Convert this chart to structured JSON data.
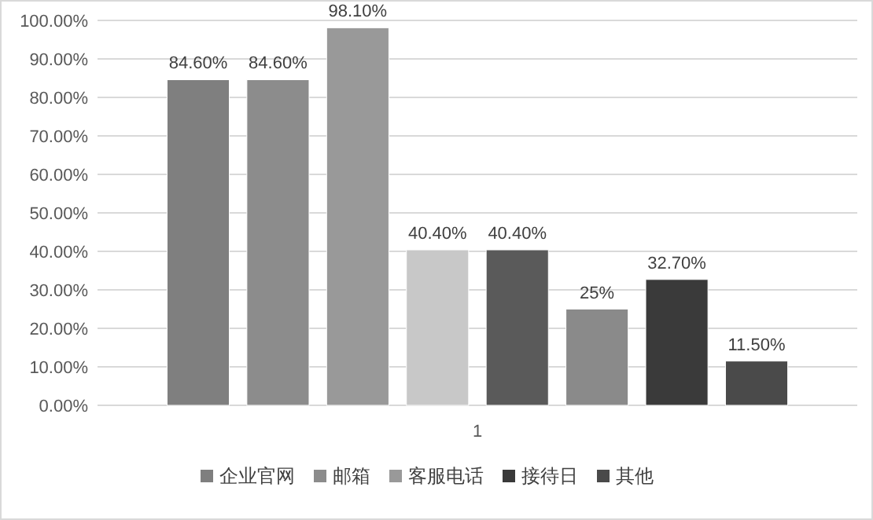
{
  "chart_data": {
    "type": "bar",
    "categories": [
      "1"
    ],
    "series": [
      {
        "name": "企业官网",
        "color": "#7f7f7f",
        "values": [
          84.6
        ],
        "value_labels": [
          "84.60%"
        ]
      },
      {
        "name": "邮箱",
        "color": "#8c8c8c",
        "values": [
          84.6
        ],
        "value_labels": [
          "84.60%"
        ]
      },
      {
        "name": "客服电话",
        "color": "#999999",
        "values": [
          98.1
        ],
        "value_labels": [
          "98.10%"
        ]
      },
      {
        "color": "#c8c8c8",
        "values": [
          40.4
        ],
        "value_labels": [
          "40.40%"
        ]
      },
      {
        "color": "#5a5a5a",
        "values": [
          40.4
        ],
        "value_labels": [
          "40.40%"
        ]
      },
      {
        "color": "#8a8a8a",
        "values": [
          25
        ],
        "value_labels": [
          "25%"
        ]
      },
      {
        "name": "接待日",
        "color": "#3a3a3a",
        "values": [
          32.7
        ],
        "value_labels": [
          "32.70%"
        ]
      },
      {
        "name": "其他",
        "color": "#4a4a4a",
        "values": [
          11.5
        ],
        "value_labels": [
          "11.50%"
        ]
      }
    ],
    "ylim": [
      0,
      100
    ],
    "yticks": [
      {
        "value": 0,
        "label": "0.00%"
      },
      {
        "value": 10,
        "label": "10.00%"
      },
      {
        "value": 20,
        "label": "20.00%"
      },
      {
        "value": 30,
        "label": "30.00%"
      },
      {
        "value": 40,
        "label": "40.00%"
      },
      {
        "value": 50,
        "label": "50.00%"
      },
      {
        "value": 60,
        "label": "60.00%"
      },
      {
        "value": 70,
        "label": "70.00%"
      },
      {
        "value": 80,
        "label": "80.00%"
      },
      {
        "value": 90,
        "label": "90.00%"
      },
      {
        "value": 100,
        "label": "100.00%"
      }
    ],
    "grid": "y",
    "legend": "bottom"
  }
}
